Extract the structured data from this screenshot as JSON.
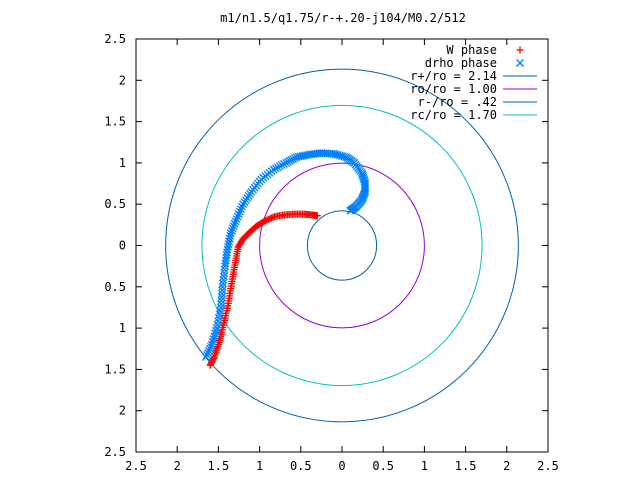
{
  "chart_data": {
    "type": "scatter",
    "title": "m1/n1.5/q1.75/r-+.20-j104/M0.2/512",
    "xlabel": "",
    "ylabel": "",
    "xlim": [
      -2.5,
      2.5
    ],
    "ylim": [
      -2.5,
      2.5
    ],
    "x_ticks": [
      -2.5,
      -2,
      -1.5,
      -1,
      -0.5,
      0,
      0.5,
      1,
      1.5,
      2,
      2.5
    ],
    "y_ticks": [
      -2.5,
      -2,
      -1.5,
      -1,
      -0.5,
      0,
      0.5,
      1,
      1.5,
      2,
      2.5
    ],
    "x_tick_labels": [
      "2.5",
      "2",
      "1.5",
      "1",
      "0.5",
      "0",
      "0.5",
      "1",
      "1.5",
      "2",
      "2.5"
    ],
    "y_tick_labels": [
      "2.5",
      "2",
      "1.5",
      "1",
      "0.5",
      "0",
      "0.5",
      "1",
      "1.5",
      "2",
      "2.5"
    ],
    "grid": false,
    "legend_position": "top-right",
    "series": [
      {
        "name": "W phase",
        "kind": "points",
        "marker": "plus",
        "color": "#ff0000",
        "x": [
          -1.6,
          -1.55,
          -1.5,
          -1.46,
          -1.42,
          -1.38,
          -1.35,
          -1.32,
          -1.29,
          -1.26,
          -1.2,
          -1.12,
          -1.03,
          -0.93,
          -0.82,
          -0.7,
          -0.58,
          -0.46,
          -0.36,
          -0.3
        ],
        "y": [
          -1.45,
          -1.35,
          -1.2,
          -1.05,
          -0.88,
          -0.7,
          -0.52,
          -0.35,
          -0.18,
          -0.02,
          0.08,
          0.16,
          0.24,
          0.3,
          0.35,
          0.37,
          0.38,
          0.38,
          0.37,
          0.36
        ]
      },
      {
        "name": "drho phase",
        "kind": "points",
        "marker": "cross",
        "color": "#0080ff",
        "x": [
          -1.65,
          -1.58,
          -1.52,
          -1.47,
          -1.45,
          -1.42,
          -1.39,
          -1.35,
          -1.28,
          -1.2,
          -1.1,
          -0.98,
          -0.83,
          -0.68,
          -0.55,
          -0.4,
          -0.25,
          -0.1,
          0.05,
          0.15,
          0.24,
          0.28,
          0.28,
          0.24,
          0.17,
          0.1
        ],
        "y": [
          -1.35,
          -1.2,
          -1.0,
          -0.75,
          -0.5,
          -0.25,
          -0.05,
          0.15,
          0.32,
          0.5,
          0.65,
          0.8,
          0.92,
          1.0,
          1.07,
          1.1,
          1.12,
          1.11,
          1.07,
          1.0,
          0.88,
          0.76,
          0.65,
          0.55,
          0.47,
          0.42
        ]
      },
      {
        "name": "r+/ro = 2.14",
        "kind": "circle",
        "radius": 2.14,
        "color": "#0060ad"
      },
      {
        "name": "ro/ro = 1.00",
        "kind": "circle",
        "radius": 1.0,
        "color": "#9400d3"
      },
      {
        "name": "r-/ro = .42",
        "kind": "circle",
        "radius": 0.42,
        "color": "#0060ad"
      },
      {
        "name": "rc/ro = 1.70",
        "kind": "circle",
        "radius": 1.7,
        "color": "#00c0c0"
      }
    ]
  }
}
